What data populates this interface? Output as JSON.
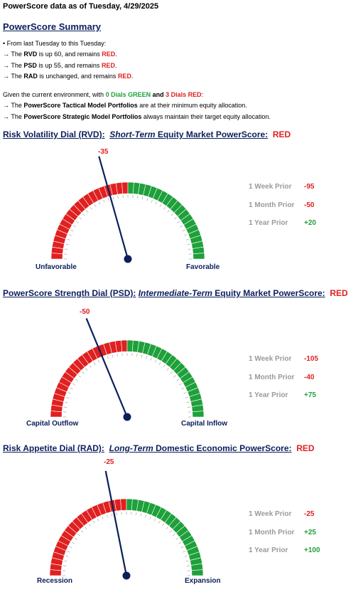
{
  "header": "PowerScore data as of Tuesday, 4/29/2025",
  "summary": {
    "title": "PowerScore Summary",
    "intro": "From last Tuesday to this Tuesday:",
    "lines": [
      {
        "prefix": "→ The ",
        "dial": "RVD",
        "mid": " is up 60, and remains ",
        "status": "RED",
        "end": "."
      },
      {
        "prefix": "→ The ",
        "dial": "PSD",
        "mid": " is up 55, and remains ",
        "status": "RED",
        "end": "."
      },
      {
        "prefix": "→ The ",
        "dial": "RAD",
        "mid": " is unchanged, and remains ",
        "status": "RED",
        "end": "."
      }
    ],
    "env_a": "Given the current environment, with ",
    "env_green": "0 Dials GREEN",
    "env_and": " and ",
    "env_red": "3 Dials RED",
    "env_end": ":",
    "tactical_prefix": "→ The ",
    "tactical_bold": "PowerScore Tactical Model Portfolios",
    "tactical_rest": " are at their minimum equity allocation.",
    "strategic_prefix": "→ The ",
    "strategic_bold": "PowerScore Strategic Model Portfolios",
    "strategic_rest": " always maintain their target equity allocation."
  },
  "dials": [
    {
      "title_a": "Risk Volatility Dial (RVD):",
      "title_b": "Short-Term",
      "title_c": " Equity Market PowerScore:",
      "status": "RED",
      "value": -35,
      "value_label": "-35",
      "left_label": "Unfavorable",
      "right_label": "Favorable",
      "prior": [
        {
          "label": "1 Week Prior",
          "value": "-95"
        },
        {
          "label": "1 Month Prior",
          "value": "-50"
        },
        {
          "label": "1 Year Prior",
          "value": "+20"
        }
      ]
    },
    {
      "title_a": "PowerScore Strength Dial (PSD):",
      "title_b": "Intermediate-Term",
      "title_c": " Equity Market PowerScore:",
      "status": "RED",
      "value": -50,
      "value_label": "-50",
      "left_label": "Capital Outflow",
      "right_label": "Capital Inflow",
      "prior": [
        {
          "label": "1 Week Prior",
          "value": "-105"
        },
        {
          "label": "1 Month Prior",
          "value": "-40"
        },
        {
          "label": "1 Year Prior",
          "value": "+75"
        }
      ]
    },
    {
      "title_a": "Risk Appetite Dial (RAD):",
      "title_b": "Long-Term",
      "title_c": " Domestic Economic PowerScore:",
      "status": "RED",
      "value": -25,
      "value_label": "-25",
      "left_label": "Recession",
      "right_label": "Expansion",
      "prior": [
        {
          "label": "1 Week Prior",
          "value": "-25"
        },
        {
          "label": "1 Month Prior",
          "value": "+25"
        },
        {
          "label": "1 Year Prior",
          "value": "+100"
        }
      ]
    }
  ],
  "colors": {
    "red": "#e02020",
    "green": "#1ea03a",
    "navy": "#0b1f5c"
  }
}
